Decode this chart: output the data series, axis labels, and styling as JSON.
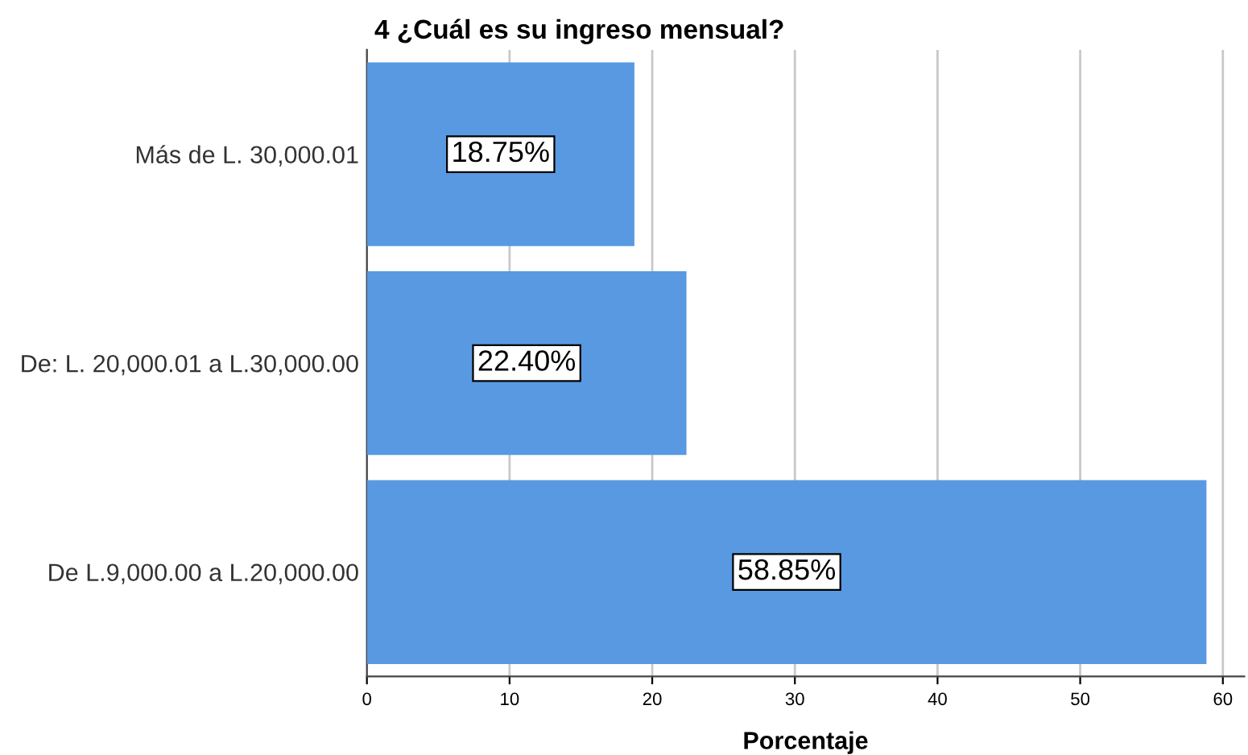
{
  "chart_data": {
    "type": "bar",
    "orientation": "horizontal",
    "title": "4 ¿Cuál es su ingreso mensual?",
    "xlabel": "Porcentaje",
    "categories": [
      "Más de L. 30,000.01",
      "De: L. 20,000.01 a L.30,000.00",
      "De L.9,000.00 a L.20,000.00"
    ],
    "values": [
      18.75,
      22.4,
      58.85
    ],
    "value_labels": [
      "18.75%",
      "22.40%",
      "58.85%"
    ],
    "color": "#5899e2",
    "xlim": [
      0,
      61.5
    ],
    "xticks": [
      0,
      10,
      20,
      30,
      40,
      50,
      60
    ],
    "grid": "x"
  }
}
